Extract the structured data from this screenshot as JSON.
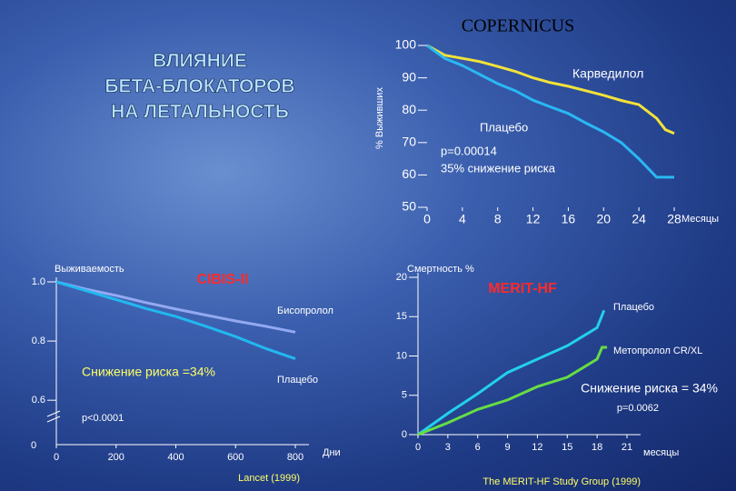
{
  "slide_title": [
    "ВЛИЯНИЕ",
    "БЕТА-БЛОКАТОРОВ",
    "НА ЛЕТАЛЬНОСТЬ"
  ],
  "chart_data": [
    {
      "type": "line",
      "title": "COPERNICUS",
      "y_label": "% Выживших",
      "x_label": "Месяцы",
      "xlim": [
        0,
        28
      ],
      "ylim": [
        50,
        100
      ],
      "xticks": [
        0,
        4,
        8,
        12,
        16,
        20,
        24,
        28
      ],
      "yticks": [
        50,
        60,
        70,
        80,
        90,
        100
      ],
      "annotations": [
        "p=0.00014",
        "35% снижение риска"
      ],
      "series": [
        {
          "name": "Карведилол",
          "color": "#f2e23a",
          "x": [
            0,
            2,
            4,
            6,
            8,
            10,
            12,
            14,
            16,
            18,
            20,
            22,
            24,
            26,
            27,
            28
          ],
          "values": [
            100,
            97,
            96,
            95,
            93.5,
            92,
            90,
            88.5,
            87.4,
            86,
            84.6,
            83,
            81.7,
            77.5,
            74,
            72.8
          ]
        },
        {
          "name": "Плацебо",
          "color": "#2ab8f4",
          "x": [
            0,
            2,
            4,
            6,
            8,
            10,
            12,
            14,
            16,
            18,
            20,
            22,
            24,
            26,
            27,
            28
          ],
          "values": [
            100,
            96,
            93.8,
            91,
            88.2,
            86,
            83.1,
            81,
            79,
            76,
            73.3,
            70,
            65,
            59.3,
            59.3,
            59.3
          ]
        }
      ]
    },
    {
      "type": "line",
      "title": "CIBIS-II",
      "y_label": "Выживаемость",
      "x_label": "Дни",
      "y_origin_label": "0",
      "source": "Lancet (1999)",
      "xlim": [
        0,
        800
      ],
      "ylim": [
        0.45,
        1.0
      ],
      "xticks": [
        0,
        200,
        400,
        600,
        800
      ],
      "yticks": [
        {
          "value": 0.6,
          "label": "0.6"
        },
        {
          "value": 0.8,
          "label": "0.8"
        },
        {
          "value": 1,
          "label": "1.0"
        }
      ],
      "annotations": [
        "Снижение риска =34%",
        "p<0.0001"
      ],
      "series": [
        {
          "name": "Бисопролол",
          "color": "#93a9f2",
          "x": [
            0,
            100,
            200,
            300,
            400,
            500,
            600,
            700,
            800
          ],
          "values": [
            1.0,
            0.975,
            0.954,
            0.93,
            0.908,
            0.888,
            0.868,
            0.85,
            0.83
          ]
        },
        {
          "name": "Плацебо",
          "color": "#22b8f0",
          "x": [
            0,
            100,
            200,
            300,
            400,
            500,
            600,
            700,
            800
          ],
          "values": [
            1.0,
            0.97,
            0.94,
            0.91,
            0.883,
            0.85,
            0.815,
            0.775,
            0.74
          ]
        }
      ]
    },
    {
      "type": "line",
      "title": "MERIT-HF",
      "y_label": "Смертность %",
      "x_label": "месяцы",
      "source": "The MERIT-HF Study Group (1999)",
      "xlim": [
        0,
        21
      ],
      "ylim": [
        0,
        20
      ],
      "xticks": [
        0,
        3,
        6,
        9,
        12,
        15,
        18,
        21
      ],
      "yticks": [
        0,
        5,
        10,
        15,
        20
      ],
      "annotations": [
        "Снижение риска = 34%",
        "p=0.0062"
      ],
      "series": [
        {
          "name": "Плацебо",
          "color": "#22d0ee",
          "x": [
            0,
            3,
            6,
            9,
            12,
            15,
            18,
            18.7
          ],
          "values": [
            0,
            2.7,
            5.2,
            7.9,
            9.6,
            11.3,
            13.6,
            15.8
          ]
        },
        {
          "name": "Метопролол CR/XL",
          "color": "#66dd44",
          "x": [
            0,
            3,
            6,
            9,
            12,
            15,
            18,
            18.5,
            19
          ],
          "values": [
            0,
            1.5,
            3.2,
            4.4,
            6.1,
            7.3,
            9.6,
            11.1,
            11.1
          ]
        }
      ]
    }
  ]
}
